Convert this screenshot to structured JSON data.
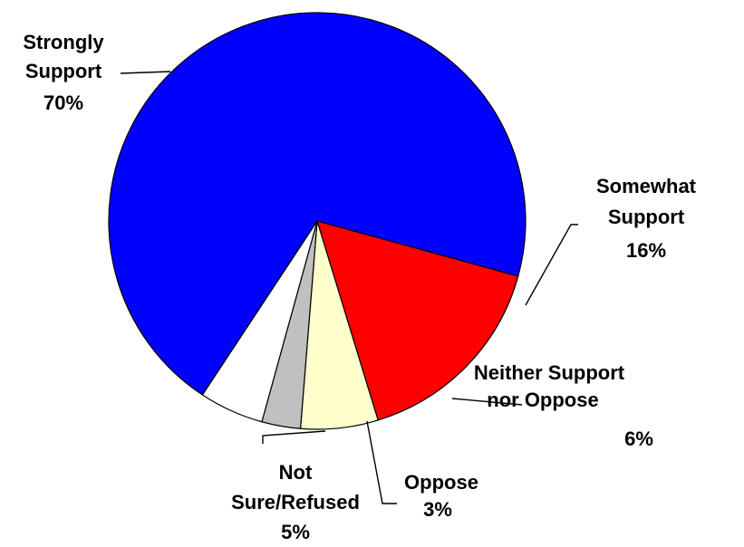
{
  "chart_data": {
    "type": "pie",
    "start_angle_deg": 90,
    "direction": "clockwise",
    "slices": [
      {
        "key": "neither",
        "label_lines": [
          "Neither Support",
          "nor Oppose"
        ],
        "percent_label": "6%",
        "value": 6,
        "color": "#ffffcc"
      },
      {
        "key": "oppose",
        "label_lines": [
          "Oppose"
        ],
        "percent_label": "3%",
        "value": 3,
        "color": "#c0c0c0"
      },
      {
        "key": "notsure",
        "label_lines": [
          "Not",
          "Sure/Refused"
        ],
        "percent_label": "5%",
        "value": 5,
        "color": "#ffffff"
      },
      {
        "key": "strongly",
        "label_lines": [
          "Strongly",
          "Support"
        ],
        "percent_label": "70%",
        "value": 70,
        "color": "#0000ff"
      },
      {
        "key": "somewhat",
        "label_lines": [
          "Somewhat",
          "Support"
        ],
        "percent_label": "16%",
        "value": 16,
        "color": "#ff0000"
      }
    ]
  }
}
